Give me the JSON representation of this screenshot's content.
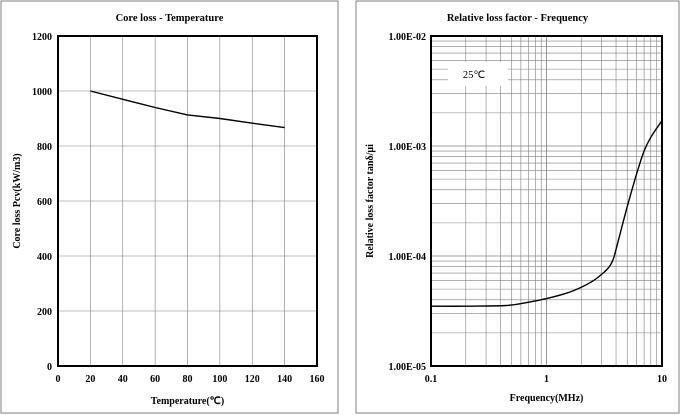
{
  "chart_data": [
    {
      "type": "line",
      "title": "Core loss - Temperature",
      "xlabel": "Temperature(℃)",
      "ylabel": "Core loss Pcv(kW/m3)",
      "xlim": [
        0,
        160
      ],
      "ylim": [
        0,
        1200
      ],
      "x_ticks": [
        "0",
        "20",
        "40",
        "60",
        "80",
        "100",
        "120",
        "140",
        "160"
      ],
      "y_ticks": [
        "0",
        "200",
        "400",
        "600",
        "800",
        "1000",
        "1200"
      ],
      "grid": true,
      "series": [
        {
          "x": [
            20,
            40,
            60,
            80,
            100,
            120,
            140
          ],
          "y": [
            1000,
            970,
            940,
            913,
            900,
            883,
            867
          ]
        }
      ]
    },
    {
      "type": "line",
      "title": "Relative loss factor - Frequency",
      "xlabel": "Frequency(MHz)",
      "ylabel": "Relative loss factor tanδ/μi",
      "x_scale": "log",
      "y_scale": "log",
      "xlim": [
        0.1,
        10
      ],
      "ylim": [
        1e-05,
        0.01
      ],
      "x_ticks": [
        "0.1",
        "1",
        "10"
      ],
      "y_ticks": [
        "1.00E-05",
        "1.00E-04",
        "1.00E-03",
        "1.00E-02"
      ],
      "grid": true,
      "annotation": "25℃",
      "series": [
        {
          "x": [
            0.1,
            0.2,
            0.45,
            0.7,
            1.0,
            1.5,
            2.0,
            2.5,
            3.0,
            3.5,
            3.8,
            4.2,
            5.0,
            6.0,
            7.0,
            8.0,
            10.0
          ],
          "y": [
            3.5e-05,
            3.5e-05,
            3.55e-05,
            3.8e-05,
            4.1e-05,
            4.6e-05,
            5.2e-05,
            5.9e-05,
            6.8e-05,
            8e-05,
            9.5e-05,
            0.00014,
            0.00028,
            0.00055,
            0.0009,
            0.0012,
            0.0017
          ]
        }
      ]
    }
  ]
}
